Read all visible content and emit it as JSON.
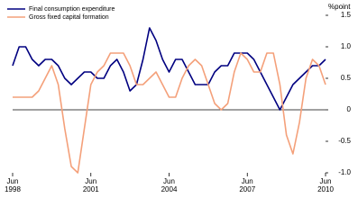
{
  "chart_data": {
    "type": "line",
    "y_label": "%point",
    "categories": [
      "Jun 1998",
      null,
      null,
      null,
      null,
      null,
      null,
      null,
      null,
      null,
      null,
      null,
      "Jun 2001",
      null,
      null,
      null,
      null,
      null,
      null,
      null,
      null,
      null,
      null,
      null,
      "Jun 2004",
      null,
      null,
      null,
      null,
      null,
      null,
      null,
      null,
      null,
      null,
      null,
      "Jun 2007",
      null,
      null,
      null,
      null,
      null,
      null,
      null,
      null,
      null,
      null,
      null,
      "Jun 2010"
    ],
    "series": [
      {
        "name": "Final consumption expenditure",
        "color": "#000080",
        "values": [
          0.7,
          1.0,
          1.0,
          0.8,
          0.7,
          0.8,
          0.8,
          0.7,
          0.5,
          0.4,
          0.5,
          0.6,
          0.6,
          0.5,
          0.5,
          0.7,
          0.8,
          0.6,
          0.3,
          0.4,
          0.8,
          1.3,
          1.1,
          0.8,
          0.6,
          0.8,
          0.8,
          0.6,
          0.4,
          0.4,
          0.4,
          0.6,
          0.7,
          0.7,
          0.9,
          0.9,
          0.9,
          0.8,
          0.6,
          0.4,
          0.2,
          0.0,
          0.2,
          0.4,
          0.5,
          0.6,
          0.7,
          0.7,
          0.8
        ]
      },
      {
        "name": "Gross fixed capital formation",
        "color": "#f4a07a",
        "values": [
          0.2,
          0.2,
          0.2,
          0.2,
          0.3,
          0.5,
          0.7,
          0.4,
          -0.3,
          -0.9,
          -1.0,
          -0.3,
          0.4,
          0.6,
          0.7,
          0.9,
          0.9,
          0.9,
          0.7,
          0.4,
          0.4,
          0.5,
          0.6,
          0.4,
          0.2,
          0.2,
          0.5,
          0.7,
          0.8,
          0.7,
          0.4,
          0.1,
          0.0,
          0.1,
          0.6,
          0.9,
          0.8,
          0.6,
          0.6,
          0.9,
          0.9,
          0.4,
          -0.4,
          -0.7,
          -0.2,
          0.5,
          0.8,
          0.7,
          0.4
        ]
      }
    ],
    "ylim": [
      -1,
      1.5
    ],
    "yticks": [
      1.5,
      {
        "value": 1,
        "label": "1.0"
      },
      0.5,
      0,
      -0.5,
      {
        "value": -1,
        "label": "-1.0"
      }
    ],
    "legend": "top-left"
  }
}
